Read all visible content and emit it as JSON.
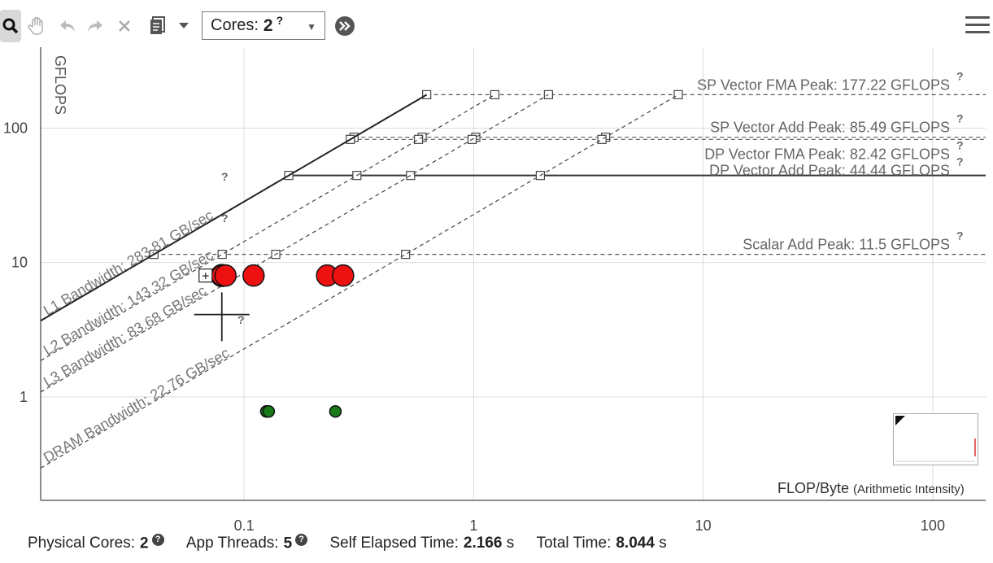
{
  "toolbar": {
    "cores_label": "Cores:",
    "cores_value": "2",
    "icons": [
      "zoom-icon",
      "pan-hand-icon",
      "undo-icon",
      "redo-icon",
      "close-icon",
      "export-icon",
      "dropdown-icon",
      "expand-icon",
      "menu-icon"
    ]
  },
  "chart_data": {
    "type": "scatter",
    "title": "",
    "xlabel": "FLOP/Byte",
    "xlabel_sub": "(Arithmetic Intensity)",
    "ylabel": "GFLOPS",
    "xscale": "log",
    "yscale": "log",
    "xlim": [
      0.013,
      170
    ],
    "ylim": [
      0.17,
      400
    ],
    "x_ticks": [
      {
        "value": 0.1,
        "label": "0.1"
      },
      {
        "value": 1,
        "label": "1"
      },
      {
        "value": 10,
        "label": "10"
      },
      {
        "value": 100,
        "label": "100"
      }
    ],
    "y_ticks": [
      {
        "value": 1,
        "label": "1"
      },
      {
        "value": 10,
        "label": "10"
      },
      {
        "value": 100,
        "label": "100"
      }
    ],
    "grid": true,
    "roofs": [
      {
        "label": "SP Vector FMA Peak: 177.22 GFLOPS",
        "value": 177.22
      },
      {
        "label": "SP Vector Add Peak: 85.49 GFLOPS",
        "value": 85.49
      },
      {
        "label": "DP Vector FMA Peak: 82.42 GFLOPS",
        "value": 82.42
      },
      {
        "label": "DP Vector Add Peak: 44.44 GFLOPS",
        "value": 44.44,
        "solid": true
      },
      {
        "label": "Scalar Add Peak: 11.5 GFLOPS",
        "value": 11.5
      }
    ],
    "bandwidths": [
      {
        "label": "L1 Bandwidth: 283.81 GB/sec",
        "value": 283.81,
        "solid": true
      },
      {
        "label": "L2 Bandwidth: 143.32 GB/sec",
        "value": 143.32
      },
      {
        "label": "L3 Bandwidth: 83.68 GB/sec",
        "value": 83.68
      },
      {
        "label": "DRAM Bandwidth: 22.76 GB/sec",
        "value": 22.76
      }
    ],
    "points": [
      {
        "x": 0.08,
        "y": 8.0,
        "color": "#ee1111",
        "size": "large",
        "outline": "#111",
        "selected": true
      },
      {
        "x": 0.083,
        "y": 8.0,
        "color": "#ee1111",
        "size": "large"
      },
      {
        "x": 0.11,
        "y": 8.0,
        "color": "#ee1111",
        "size": "large"
      },
      {
        "x": 0.23,
        "y": 8.0,
        "color": "#ee1111",
        "size": "large"
      },
      {
        "x": 0.27,
        "y": 8.0,
        "color": "#ee1111",
        "size": "large"
      },
      {
        "x": 0.125,
        "y": 0.78,
        "color": "#1a7a1a",
        "size": "small"
      },
      {
        "x": 0.128,
        "y": 0.78,
        "color": "#1a7a1a",
        "size": "small"
      },
      {
        "x": 0.25,
        "y": 0.78,
        "color": "#1a7a1a",
        "size": "small"
      }
    ]
  },
  "footer": {
    "physical_cores_label": "Physical Cores:",
    "physical_cores_value": "2",
    "app_threads_label": "App Threads:",
    "app_threads_value": "5",
    "self_time_label": "Self Elapsed Time:",
    "self_time_value": "2.166",
    "self_time_unit": "s",
    "total_time_label": "Total Time:",
    "total_time_value": "8.044",
    "total_time_unit": "s"
  }
}
